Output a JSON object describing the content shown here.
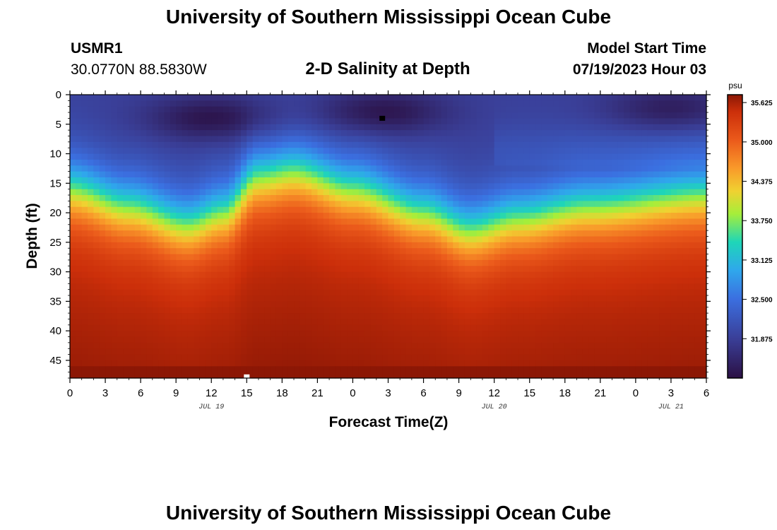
{
  "header": {
    "title": "University of Southern Mississippi Ocean Cube",
    "station": "USMR1",
    "coords": "30.0770N  88.5830W",
    "plot_title": "2-D Salinity at Depth",
    "model_label": "Model Start Time",
    "model_time": "07/19/2023 Hour 03"
  },
  "footer": {
    "title": "University of Southern Mississippi Ocean Cube"
  },
  "chart_data": {
    "type": "heatmap",
    "title": "2-D Salinity at Depth",
    "xlabel": "Forecast Time(Z)",
    "ylabel": "Depth (ft)",
    "x_range_hours": [
      0,
      54
    ],
    "y_range_ft": [
      0,
      48
    ],
    "x_ticks": [
      {
        "h": 0,
        "label": "0"
      },
      {
        "h": 3,
        "label": "3"
      },
      {
        "h": 6,
        "label": "6"
      },
      {
        "h": 9,
        "label": "9"
      },
      {
        "h": 12,
        "label": "12"
      },
      {
        "h": 15,
        "label": "15"
      },
      {
        "h": 18,
        "label": "18"
      },
      {
        "h": 21,
        "label": "21"
      },
      {
        "h": 24,
        "label": "0"
      },
      {
        "h": 27,
        "label": "3"
      },
      {
        "h": 30,
        "label": "6"
      },
      {
        "h": 33,
        "label": "9"
      },
      {
        "h": 36,
        "label": "12"
      },
      {
        "h": 39,
        "label": "15"
      },
      {
        "h": 42,
        "label": "18"
      },
      {
        "h": 45,
        "label": "21"
      },
      {
        "h": 48,
        "label": "0"
      },
      {
        "h": 51,
        "label": "3"
      },
      {
        "h": 54,
        "label": "6"
      }
    ],
    "date_labels": [
      {
        "h": 12,
        "label": "JUL 19"
      },
      {
        "h": 36,
        "label": "JUL 20"
      },
      {
        "h": 51,
        "label": "JUL 21"
      }
    ],
    "y_ticks": [
      0,
      5,
      10,
      15,
      20,
      25,
      30,
      35,
      40,
      45
    ],
    "colorbar": {
      "unit": "psu",
      "min": 31.25,
      "max": 35.75,
      "tick_values": [
        35.625,
        35.0,
        34.375,
        33.75,
        33.125,
        32.5,
        31.875
      ],
      "tick_labels": [
        "35.625",
        "35.000",
        "34.375",
        "33.750",
        "33.125",
        "32.500",
        "31.875"
      ]
    },
    "field_profile": {
      "surface_salinity_psu": 31.9,
      "bottom_salinity_psu": 35.5,
      "halocline_depth_ft": [
        {
          "h": 0,
          "d": 16
        },
        {
          "h": 5,
          "d": 19
        },
        {
          "h": 10,
          "d": 22
        },
        {
          "h": 13,
          "d": 20
        },
        {
          "h": 16,
          "d": 14
        },
        {
          "h": 19,
          "d": 13
        },
        {
          "h": 24,
          "d": 16
        },
        {
          "h": 30,
          "d": 20
        },
        {
          "h": 34,
          "d": 23
        },
        {
          "h": 38,
          "d": 21
        },
        {
          "h": 44,
          "d": 19
        },
        {
          "h": 54,
          "d": 17
        }
      ],
      "fresh_cores": [
        {
          "h": 12,
          "d": 4,
          "salinity": 31.3
        },
        {
          "h": 26.5,
          "d": 3,
          "salinity": 31.3
        },
        {
          "h": 51,
          "d": 2.5,
          "salinity": 31.4
        }
      ],
      "markers": [
        {
          "h": 26.5,
          "d": 4,
          "color": "#000000"
        },
        {
          "h": 15,
          "d": 47.8,
          "color": "#ffffff"
        }
      ]
    }
  }
}
